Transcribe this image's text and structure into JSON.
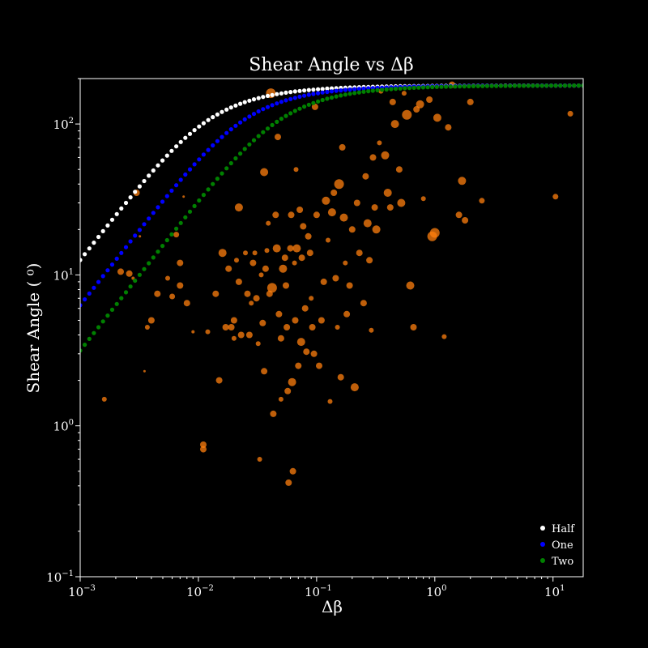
{
  "chart_data": {
    "type": "scatter",
    "title": "Shear Angle vs Δβ",
    "xlabel": "Δβ",
    "ylabel": "Shear Angle ( ⁰)",
    "xscale": "log",
    "yscale": "log",
    "xlim": [
      0.001,
      18
    ],
    "ylim": [
      0.1,
      200
    ],
    "x_ticks": [
      {
        "value": 0.001,
        "base": "10",
        "exp": "−3"
      },
      {
        "value": 0.01,
        "base": "10",
        "exp": "−2"
      },
      {
        "value": 0.1,
        "base": "10",
        "exp": "−1"
      },
      {
        "value": 1,
        "base": "10",
        "exp": "0"
      },
      {
        "value": 10,
        "base": "10",
        "exp": "1"
      }
    ],
    "y_ticks": [
      {
        "value": 0.1,
        "base": "10",
        "exp": "−1"
      },
      {
        "value": 1,
        "base": "10",
        "exp": "0"
      },
      {
        "value": 10,
        "base": "10",
        "exp": "1"
      },
      {
        "value": 100,
        "base": "10",
        "exp": "2"
      }
    ],
    "grid": false,
    "legend_position": "bottom-right",
    "background": "#000000",
    "axes_color": "#ffffff",
    "observations": {
      "color": "#ff7f0e",
      "points": [
        {
          "x": 0.0016,
          "y": 1.5,
          "s": 3
        },
        {
          "x": 0.0022,
          "y": 10.5,
          "s": 4
        },
        {
          "x": 0.0026,
          "y": 10.2,
          "s": 4
        },
        {
          "x": 0.0028,
          "y": 9.5,
          "s": 2
        },
        {
          "x": 0.003,
          "y": 35,
          "s": 4
        },
        {
          "x": 0.0032,
          "y": 18,
          "s": 1.5
        },
        {
          "x": 0.0035,
          "y": 2.3,
          "s": 1.5
        },
        {
          "x": 0.0037,
          "y": 4.5,
          "s": 3
        },
        {
          "x": 0.004,
          "y": 5,
          "s": 4
        },
        {
          "x": 0.0045,
          "y": 7.5,
          "s": 4
        },
        {
          "x": 0.0055,
          "y": 9.5,
          "s": 3
        },
        {
          "x": 0.006,
          "y": 7.2,
          "s": 3.5
        },
        {
          "x": 0.0065,
          "y": 18.5,
          "s": 3.5
        },
        {
          "x": 0.007,
          "y": 12,
          "s": 4
        },
        {
          "x": 0.007,
          "y": 8.5,
          "s": 4
        },
        {
          "x": 0.0075,
          "y": 33,
          "s": 1.5
        },
        {
          "x": 0.008,
          "y": 6.5,
          "s": 4
        },
        {
          "x": 0.009,
          "y": 4.2,
          "s": 2
        },
        {
          "x": 0.011,
          "y": 0.7,
          "s": 4
        },
        {
          "x": 0.011,
          "y": 0.75,
          "s": 4
        },
        {
          "x": 0.012,
          "y": 4.2,
          "s": 3
        },
        {
          "x": 0.014,
          "y": 7.5,
          "s": 4
        },
        {
          "x": 0.015,
          "y": 2,
          "s": 4
        },
        {
          "x": 0.016,
          "y": 14,
          "s": 5
        },
        {
          "x": 0.017,
          "y": 4.5,
          "s": 4
        },
        {
          "x": 0.018,
          "y": 11,
          "s": 4
        },
        {
          "x": 0.019,
          "y": 4.5,
          "s": 4
        },
        {
          "x": 0.02,
          "y": 3.8,
          "s": 3
        },
        {
          "x": 0.02,
          "y": 5,
          "s": 4
        },
        {
          "x": 0.021,
          "y": 12.5,
          "s": 3
        },
        {
          "x": 0.022,
          "y": 28,
          "s": 5
        },
        {
          "x": 0.022,
          "y": 9,
          "s": 4
        },
        {
          "x": 0.023,
          "y": 4,
          "s": 4
        },
        {
          "x": 0.025,
          "y": 14,
          "s": 3
        },
        {
          "x": 0.026,
          "y": 7.5,
          "s": 4
        },
        {
          "x": 0.027,
          "y": 4,
          "s": 4
        },
        {
          "x": 0.028,
          "y": 6.5,
          "s": 3
        },
        {
          "x": 0.029,
          "y": 12,
          "s": 4
        },
        {
          "x": 0.03,
          "y": 14,
          "s": 3
        },
        {
          "x": 0.031,
          "y": 7,
          "s": 4
        },
        {
          "x": 0.032,
          "y": 3.5,
          "s": 3
        },
        {
          "x": 0.033,
          "y": 0.6,
          "s": 3
        },
        {
          "x": 0.034,
          "y": 10,
          "s": 3
        },
        {
          "x": 0.035,
          "y": 4.8,
          "s": 4
        },
        {
          "x": 0.036,
          "y": 48,
          "s": 5
        },
        {
          "x": 0.036,
          "y": 2.3,
          "s": 4
        },
        {
          "x": 0.037,
          "y": 11,
          "s": 4
        },
        {
          "x": 0.038,
          "y": 14.5,
          "s": 3
        },
        {
          "x": 0.039,
          "y": 22,
          "s": 3
        },
        {
          "x": 0.04,
          "y": 7.5,
          "s": 4
        },
        {
          "x": 0.041,
          "y": 160,
          "s": 6
        },
        {
          "x": 0.042,
          "y": 8.2,
          "s": 6
        },
        {
          "x": 0.043,
          "y": 1.2,
          "s": 4
        },
        {
          "x": 0.045,
          "y": 25,
          "s": 4
        },
        {
          "x": 0.046,
          "y": 15,
          "s": 5
        },
        {
          "x": 0.047,
          "y": 82,
          "s": 4
        },
        {
          "x": 0.048,
          "y": 5.5,
          "s": 4
        },
        {
          "x": 0.05,
          "y": 3.8,
          "s": 4
        },
        {
          "x": 0.05,
          "y": 1.5,
          "s": 3
        },
        {
          "x": 0.052,
          "y": 11,
          "s": 5
        },
        {
          "x": 0.054,
          "y": 13,
          "s": 4
        },
        {
          "x": 0.055,
          "y": 8.5,
          "s": 4
        },
        {
          "x": 0.056,
          "y": 4.5,
          "s": 4
        },
        {
          "x": 0.057,
          "y": 1.7,
          "s": 4
        },
        {
          "x": 0.058,
          "y": 0.42,
          "s": 4
        },
        {
          "x": 0.06,
          "y": 15,
          "s": 4
        },
        {
          "x": 0.061,
          "y": 25,
          "s": 4
        },
        {
          "x": 0.062,
          "y": 1.95,
          "s": 5
        },
        {
          "x": 0.063,
          "y": 0.5,
          "s": 4
        },
        {
          "x": 0.065,
          "y": 12,
          "s": 3
        },
        {
          "x": 0.066,
          "y": 5,
          "s": 4
        },
        {
          "x": 0.067,
          "y": 50,
          "s": 3
        },
        {
          "x": 0.068,
          "y": 15,
          "s": 5
        },
        {
          "x": 0.07,
          "y": 2.5,
          "s": 4
        },
        {
          "x": 0.072,
          "y": 27,
          "s": 4
        },
        {
          "x": 0.074,
          "y": 3.6,
          "s": 5
        },
        {
          "x": 0.075,
          "y": 13,
          "s": 4
        },
        {
          "x": 0.077,
          "y": 21,
          "s": 4
        },
        {
          "x": 0.08,
          "y": 6,
          "s": 4
        },
        {
          "x": 0.082,
          "y": 3.1,
          "s": 4
        },
        {
          "x": 0.085,
          "y": 18,
          "s": 4
        },
        {
          "x": 0.088,
          "y": 14,
          "s": 4
        },
        {
          "x": 0.09,
          "y": 7,
          "s": 3
        },
        {
          "x": 0.092,
          "y": 4.5,
          "s": 4
        },
        {
          "x": 0.095,
          "y": 3,
          "s": 4
        },
        {
          "x": 0.097,
          "y": 130,
          "s": 4
        },
        {
          "x": 0.1,
          "y": 25,
          "s": 4
        },
        {
          "x": 0.105,
          "y": 2.5,
          "s": 4
        },
        {
          "x": 0.11,
          "y": 5,
          "s": 4
        },
        {
          "x": 0.115,
          "y": 9,
          "s": 4
        },
        {
          "x": 0.12,
          "y": 31,
          "s": 5
        },
        {
          "x": 0.125,
          "y": 17,
          "s": 3
        },
        {
          "x": 0.13,
          "y": 1.45,
          "s": 3
        },
        {
          "x": 0.135,
          "y": 26,
          "s": 5
        },
        {
          "x": 0.14,
          "y": 35,
          "s": 4
        },
        {
          "x": 0.145,
          "y": 9.5,
          "s": 4
        },
        {
          "x": 0.15,
          "y": 4.5,
          "s": 3
        },
        {
          "x": 0.155,
          "y": 40,
          "s": 6
        },
        {
          "x": 0.16,
          "y": 2.1,
          "s": 4
        },
        {
          "x": 0.165,
          "y": 70,
          "s": 4
        },
        {
          "x": 0.17,
          "y": 24,
          "s": 5
        },
        {
          "x": 0.175,
          "y": 12,
          "s": 3
        },
        {
          "x": 0.18,
          "y": 5.5,
          "s": 4
        },
        {
          "x": 0.19,
          "y": 8.5,
          "s": 4
        },
        {
          "x": 0.2,
          "y": 20,
          "s": 4
        },
        {
          "x": 0.21,
          "y": 1.8,
          "s": 5
        },
        {
          "x": 0.22,
          "y": 30,
          "s": 4
        },
        {
          "x": 0.23,
          "y": 14,
          "s": 4
        },
        {
          "x": 0.25,
          "y": 6.5,
          "s": 4
        },
        {
          "x": 0.26,
          "y": 45,
          "s": 4
        },
        {
          "x": 0.27,
          "y": 22,
          "s": 5
        },
        {
          "x": 0.28,
          "y": 12.5,
          "s": 4
        },
        {
          "x": 0.29,
          "y": 4.3,
          "s": 3
        },
        {
          "x": 0.3,
          "y": 60,
          "s": 4
        },
        {
          "x": 0.31,
          "y": 28,
          "s": 4
        },
        {
          "x": 0.32,
          "y": 20,
          "s": 5
        },
        {
          "x": 0.34,
          "y": 75,
          "s": 3
        },
        {
          "x": 0.35,
          "y": 165,
          "s": 3
        },
        {
          "x": 0.38,
          "y": 62,
          "s": 5
        },
        {
          "x": 0.4,
          "y": 35,
          "s": 5
        },
        {
          "x": 0.42,
          "y": 28,
          "s": 4
        },
        {
          "x": 0.44,
          "y": 140,
          "s": 4
        },
        {
          "x": 0.46,
          "y": 100,
          "s": 5
        },
        {
          "x": 0.5,
          "y": 50,
          "s": 4
        },
        {
          "x": 0.52,
          "y": 30,
          "s": 5
        },
        {
          "x": 0.55,
          "y": 160,
          "s": 3
        },
        {
          "x": 0.58,
          "y": 115,
          "s": 6
        },
        {
          "x": 0.62,
          "y": 8.5,
          "s": 5
        },
        {
          "x": 0.66,
          "y": 4.5,
          "s": 4
        },
        {
          "x": 0.7,
          "y": 125,
          "s": 4
        },
        {
          "x": 0.75,
          "y": 135,
          "s": 5
        },
        {
          "x": 0.8,
          "y": 32,
          "s": 3
        },
        {
          "x": 0.9,
          "y": 145,
          "s": 4
        },
        {
          "x": 0.95,
          "y": 18,
          "s": 6
        },
        {
          "x": 1.0,
          "y": 19,
          "s": 6
        },
        {
          "x": 1.05,
          "y": 110,
          "s": 5
        },
        {
          "x": 1.2,
          "y": 3.9,
          "s": 3
        },
        {
          "x": 1.3,
          "y": 95,
          "s": 4
        },
        {
          "x": 1.4,
          "y": 182,
          "s": 4
        },
        {
          "x": 1.6,
          "y": 25,
          "s": 4
        },
        {
          "x": 1.7,
          "y": 42,
          "s": 5
        },
        {
          "x": 1.8,
          "y": 23,
          "s": 4
        },
        {
          "x": 2.0,
          "y": 140,
          "s": 4
        },
        {
          "x": 2.5,
          "y": 31,
          "s": 3.5
        },
        {
          "x": 10.5,
          "y": 33,
          "s": 3.5
        },
        {
          "x": 14,
          "y": 117,
          "s": 3.5
        }
      ]
    },
    "series": [
      {
        "name": "Half",
        "color": "#ffffff",
        "factor": 0.5
      },
      {
        "name": "One",
        "color": "#0000ff",
        "factor": 1.0
      },
      {
        "name": "Two",
        "color": "#008000",
        "factor": 2.0
      }
    ]
  }
}
